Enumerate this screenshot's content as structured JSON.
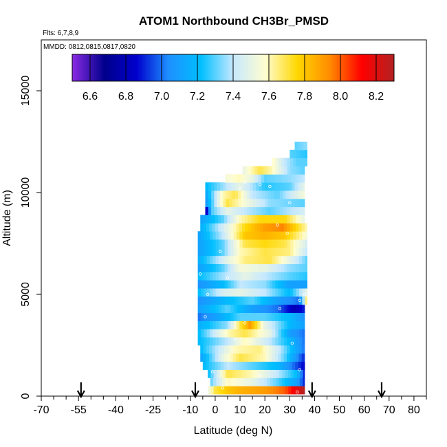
{
  "chart_data": {
    "type": "heatmap",
    "title": "ATOM1 Northbound CH3Br_PMSD",
    "flights_note": "Flts: 6,7,8,9",
    "dates_note": "MMDD: 0812,0815,0817,0820",
    "xlabel": "Latitude (deg N)",
    "ylabel": "Altitude (m)",
    "xlim": [
      -70,
      85
    ],
    "ylim": [
      0,
      17500
    ],
    "x_ticks": [
      -70,
      -55,
      -40,
      -25,
      -10,
      0,
      10,
      20,
      30,
      40,
      50,
      60,
      70,
      80
    ],
    "y_ticks": [
      0,
      5000,
      10000,
      15000
    ],
    "colorbar": {
      "min": 6.5,
      "max": 8.3,
      "ticks": [
        6.6,
        6.8,
        7.0,
        7.2,
        7.4,
        7.6,
        7.8,
        8.0,
        8.2
      ],
      "stops": [
        "#8a2be2",
        "#00008b",
        "#0000cd",
        "#1e90ff",
        "#00bfff",
        "#c6e8ff",
        "#fffdd0",
        "#ffd700",
        "#ff8c00",
        "#ff0000",
        "#b22222"
      ]
    },
    "arrows_x": [
      -54,
      -8,
      39,
      67
    ],
    "curtain": {
      "rows": [
        {
          "alt": 300,
          "x0": -3,
          "x1": 36,
          "pts": [
            [
              -3,
              7.5
            ],
            [
              0,
              7.7
            ],
            [
              5,
              7.8
            ],
            [
              10,
              7.85
            ],
            [
              20,
              7.9
            ],
            [
              28,
              8.0
            ],
            [
              32,
              8.15
            ],
            [
              36,
              8.3
            ]
          ]
        },
        {
          "alt": 700,
          "x0": -2,
          "x1": 36,
          "pts": [
            [
              -2,
              7.3
            ],
            [
              5,
              7.6
            ],
            [
              15,
              7.5
            ],
            [
              25,
              7.3
            ],
            [
              33,
              7.1
            ],
            [
              36,
              6.9
            ]
          ]
        },
        {
          "alt": 1100,
          "x0": -3,
          "x1": 36,
          "pts": [
            [
              -3,
              7.2
            ],
            [
              5,
              7.7
            ],
            [
              15,
              7.6
            ],
            [
              25,
              7.4
            ],
            [
              33,
              7.2
            ],
            [
              36,
              6.9
            ]
          ]
        },
        {
          "alt": 1500,
          "x0": -5,
          "x1": 36,
          "pts": [
            [
              -5,
              7.2
            ],
            [
              5,
              7.4
            ],
            [
              15,
              7.3
            ],
            [
              25,
              7.2
            ],
            [
              33,
              6.95
            ],
            [
              36,
              6.85
            ]
          ]
        },
        {
          "alt": 1900,
          "x0": -6,
          "x1": 36,
          "pts": [
            [
              -6,
              7.1
            ],
            [
              3,
              7.5
            ],
            [
              10,
              7.7
            ],
            [
              20,
              7.6
            ],
            [
              28,
              7.3
            ],
            [
              36,
              6.9
            ]
          ]
        },
        {
          "alt": 2300,
          "x0": -6,
          "x1": 36,
          "pts": [
            [
              -6,
              7.2
            ],
            [
              8,
              7.6
            ],
            [
              18,
              7.65
            ],
            [
              26,
              7.4
            ],
            [
              36,
              7.0
            ]
          ]
        },
        {
          "alt": 2700,
          "x0": -7,
          "x1": 36,
          "pts": [
            [
              -7,
              7.2
            ],
            [
              5,
              7.4
            ],
            [
              12,
              7.6
            ],
            [
              22,
              7.4
            ],
            [
              30,
              7.2
            ],
            [
              36,
              7.0
            ]
          ]
        },
        {
          "alt": 3100,
          "x0": -7,
          "x1": 36,
          "pts": [
            [
              -7,
              7.2
            ],
            [
              5,
              7.6
            ],
            [
              12,
              7.7
            ],
            [
              22,
              7.5
            ],
            [
              30,
              7.1
            ],
            [
              36,
              7.0
            ]
          ]
        },
        {
          "alt": 3500,
          "x0": -7,
          "x1": 36,
          "pts": [
            [
              -7,
              7.15
            ],
            [
              5,
              7.35
            ],
            [
              10,
              7.7
            ],
            [
              14,
              7.9
            ],
            [
              20,
              7.5
            ],
            [
              30,
              7.2
            ],
            [
              36,
              7.1
            ]
          ]
        },
        {
          "alt": 3900,
          "x0": -7,
          "x1": 36,
          "pts": [
            [
              -7,
              7.0
            ],
            [
              0,
              7.1
            ],
            [
              10,
              7.3
            ],
            [
              20,
              7.3
            ],
            [
              30,
              7.2
            ],
            [
              36,
              7.05
            ]
          ]
        },
        {
          "alt": 4300,
          "x0": -7,
          "x1": 36,
          "pts": [
            [
              -7,
              7.1
            ],
            [
              5,
              7.3
            ],
            [
              15,
              7.1
            ],
            [
              25,
              7.0
            ],
            [
              32,
              6.8
            ],
            [
              36,
              6.9
            ]
          ]
        },
        {
          "alt": 4700,
          "x0": -7,
          "x1": 37,
          "pts": [
            [
              -7,
              7.05
            ],
            [
              5,
              7.2
            ],
            [
              15,
              7.3
            ],
            [
              25,
              7.1
            ],
            [
              34,
              7.0
            ],
            [
              37,
              7.7
            ]
          ]
        },
        {
          "alt": 5100,
          "x0": -7,
          "x1": 37,
          "pts": [
            [
              -7,
              7.2
            ],
            [
              3,
              7.45
            ],
            [
              10,
              7.5
            ],
            [
              20,
              7.4
            ],
            [
              30,
              7.2
            ],
            [
              37,
              7.5
            ]
          ]
        },
        {
          "alt": 5500,
          "x0": -7,
          "x1": 37,
          "pts": [
            [
              -7,
              7.05
            ],
            [
              3,
              7.2
            ],
            [
              10,
              7.4
            ],
            [
              20,
              7.35
            ],
            [
              30,
              7.1
            ],
            [
              37,
              7.1
            ]
          ]
        },
        {
          "alt": 5900,
          "x0": -7,
          "x1": 37,
          "pts": [
            [
              -7,
              7.2
            ],
            [
              5,
              7.4
            ],
            [
              12,
              7.5
            ],
            [
              20,
              7.4
            ],
            [
              30,
              7.3
            ],
            [
              37,
              7.25
            ]
          ]
        },
        {
          "alt": 6300,
          "x0": -7,
          "x1": 37,
          "pts": [
            [
              -7,
              7.1
            ],
            [
              3,
              7.3
            ],
            [
              10,
              7.55
            ],
            [
              20,
              7.5
            ],
            [
              30,
              7.35
            ],
            [
              37,
              7.3
            ]
          ]
        },
        {
          "alt": 6700,
          "x0": -7,
          "x1": 37,
          "pts": [
            [
              -7,
              7.15
            ],
            [
              5,
              7.5
            ],
            [
              12,
              7.65
            ],
            [
              22,
              7.7
            ],
            [
              30,
              7.5
            ],
            [
              37,
              7.3
            ]
          ]
        },
        {
          "alt": 7100,
          "x0": -7,
          "x1": 37,
          "pts": [
            [
              -7,
              7.1
            ],
            [
              3,
              7.3
            ],
            [
              10,
              7.6
            ],
            [
              20,
              7.7
            ],
            [
              30,
              7.65
            ],
            [
              37,
              7.4
            ]
          ]
        },
        {
          "alt": 7500,
          "x0": -7,
          "x1": 37,
          "pts": [
            [
              -7,
              7.1
            ],
            [
              3,
              7.3
            ],
            [
              12,
              7.7
            ],
            [
              20,
              7.75
            ],
            [
              28,
              7.7
            ],
            [
              37,
              7.45
            ]
          ]
        },
        {
          "alt": 7900,
          "x0": -7,
          "x1": 37,
          "pts": [
            [
              -7,
              7.1
            ],
            [
              3,
              7.4
            ],
            [
              12,
              7.8
            ],
            [
              20,
              7.85
            ],
            [
              28,
              7.8
            ],
            [
              37,
              7.55
            ]
          ]
        },
        {
          "alt": 8300,
          "x0": -6,
          "x1": 37,
          "pts": [
            [
              -6,
              7.15
            ],
            [
              5,
              7.5
            ],
            [
              12,
              7.75
            ],
            [
              20,
              7.9
            ],
            [
              27,
              7.95
            ],
            [
              37,
              7.6
            ]
          ]
        },
        {
          "alt": 8700,
          "x0": -6,
          "x1": 36,
          "pts": [
            [
              -6,
              7.1
            ],
            [
              3,
              7.3
            ],
            [
              10,
              7.6
            ],
            [
              18,
              7.75
            ],
            [
              28,
              7.75
            ],
            [
              36,
              7.5
            ]
          ]
        },
        {
          "alt": 9100,
          "x0": -4,
          "x1": 36,
          "pts": [
            [
              -4,
              6.75
            ],
            [
              -1,
              7.3
            ],
            [
              5,
              7.5
            ],
            [
              12,
              7.4
            ],
            [
              22,
              7.3
            ],
            [
              36,
              7.45
            ]
          ]
        },
        {
          "alt": 9500,
          "x0": -4,
          "x1": 36,
          "pts": [
            [
              -4,
              7.05
            ],
            [
              2,
              7.55
            ],
            [
              5,
              7.7
            ],
            [
              12,
              7.55
            ],
            [
              22,
              7.35
            ],
            [
              36,
              7.3
            ]
          ]
        },
        {
          "alt": 9900,
          "x0": -4,
          "x1": 36,
          "pts": [
            [
              -4,
              7.1
            ],
            [
              3,
              7.6
            ],
            [
              8,
              7.7
            ],
            [
              15,
              7.4
            ],
            [
              25,
              7.3
            ],
            [
              36,
              7.55
            ]
          ]
        },
        {
          "alt": 10300,
          "x0": -4,
          "x1": 36,
          "pts": [
            [
              -4,
              7.2
            ],
            [
              5,
              7.4
            ],
            [
              10,
              7.5
            ],
            [
              20,
              7.25
            ],
            [
              30,
              7.3
            ],
            [
              36,
              7.5
            ]
          ]
        },
        {
          "alt": 10700,
          "x0": 4,
          "x1": 36,
          "pts": [
            [
              4,
              7.55
            ],
            [
              10,
              7.6
            ],
            [
              15,
              7.5
            ],
            [
              20,
              7.3
            ],
            [
              30,
              7.35
            ],
            [
              36,
              7.4
            ]
          ]
        },
        {
          "alt": 11100,
          "x0": 11,
          "x1": 36,
          "pts": [
            [
              11,
              7.5
            ],
            [
              18,
              7.7
            ],
            [
              23,
              7.6
            ],
            [
              30,
              7.35
            ],
            [
              36,
              7.3
            ]
          ]
        },
        {
          "alt": 11500,
          "x0": 23,
          "x1": 37,
          "pts": [
            [
              23,
              7.6
            ],
            [
              28,
              7.4
            ],
            [
              33,
              7.3
            ],
            [
              37,
              7.3
            ]
          ]
        },
        {
          "alt": 11900,
          "x0": 30,
          "x1": 37,
          "pts": [
            [
              30,
              7.3
            ],
            [
              37,
              7.25
            ]
          ]
        },
        {
          "alt": 12300,
          "x0": 32,
          "x1": 37,
          "pts": [
            [
              32,
              7.3
            ],
            [
              37,
              7.35
            ]
          ]
        }
      ]
    },
    "obs_points": [
      [
        -5,
        9200
      ],
      [
        -6,
        6000
      ],
      [
        -4,
        3900
      ],
      [
        -3,
        5000
      ],
      [
        2,
        7100
      ],
      [
        5,
        5800
      ],
      [
        10,
        10200
      ],
      [
        12,
        10500
      ],
      [
        18,
        10400
      ],
      [
        22,
        10300
      ],
      [
        25,
        8400
      ],
      [
        29,
        8000
      ],
      [
        30,
        9500
      ],
      [
        34,
        4700
      ],
      [
        34,
        1300
      ],
      [
        33,
        200
      ],
      [
        26,
        4300
      ],
      [
        18,
        1000
      ],
      [
        12,
        3600
      ],
      [
        8,
        2800
      ],
      [
        31,
        2600
      ],
      [
        36,
        5000
      ],
      [
        -1,
        1200
      ],
      [
        3,
        400
      ]
    ]
  }
}
